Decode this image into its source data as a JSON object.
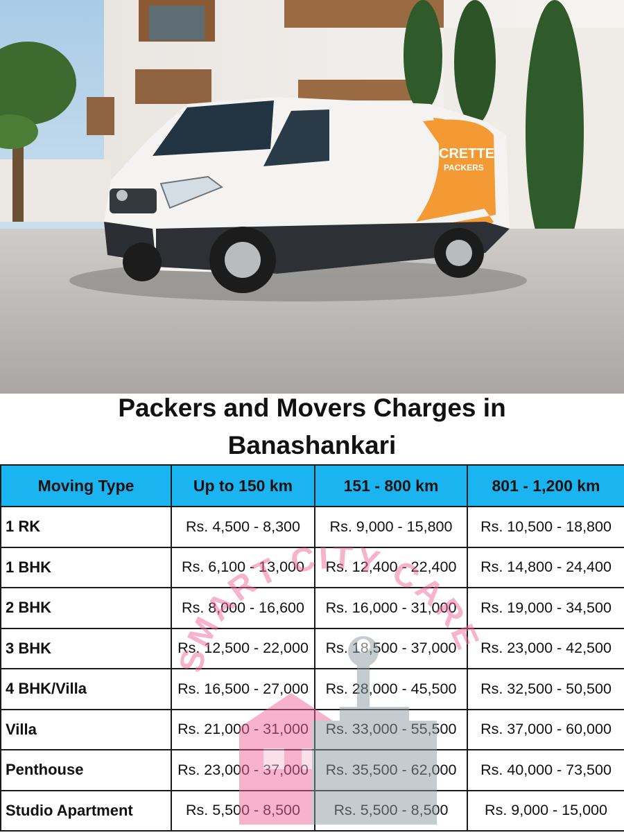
{
  "brand": {
    "van_logo_line1": "CRETTE",
    "van_logo_line2": "PACKERS"
  },
  "colors": {
    "header_blue": "#1ab5f0",
    "van_orange": "#f39a35",
    "watermark_pink": "#f06a9a"
  },
  "title": {
    "line1": "Packers and Movers Charges in",
    "line2": "Banashankari"
  },
  "table": {
    "headers": [
      "Moving Type",
      "Up to 150 km",
      "151 - 800 km",
      "801 - 1,200 km"
    ],
    "rows": [
      {
        "type": "1 RK",
        "c1": "Rs. 4,500 - 8,300",
        "c2": "Rs. 9,000 - 15,800",
        "c3": "Rs. 10,500 - 18,800"
      },
      {
        "type": "1 BHK",
        "c1": "Rs. 6,100 - 13,000",
        "c2": "Rs. 12,400 - 22,400",
        "c3": "Rs. 14,800 - 24,400"
      },
      {
        "type": "2 BHK",
        "c1": "Rs. 8,000 - 16,600",
        "c2": "Rs. 16,000 - 31,000",
        "c3": "Rs. 19,000 - 34,500"
      },
      {
        "type": "3 BHK",
        "c1": "Rs. 12,500 - 22,000",
        "c2": "Rs. 18,500 - 37,000",
        "c3": "Rs. 23,000 - 42,500"
      },
      {
        "type": "4 BHK/Villa",
        "c1": "Rs. 16,500 - 27,000",
        "c2": "Rs. 28,000 - 45,500",
        "c3": "Rs. 32,500 - 50,500"
      },
      {
        "type": "Villa",
        "c1": "Rs. 21,000 - 31,000",
        "c2": "Rs. 33,000 - 55,500",
        "c3": "Rs. 37,000 - 60,000"
      },
      {
        "type": "Penthouse",
        "c1": "Rs. 23,000 - 37,000",
        "c2": "Rs. 35,500 - 62,000",
        "c3": "Rs. 40,000 - 73,500"
      },
      {
        "type": "Studio Apartment",
        "c1": "Rs. 5,500 - 8,500",
        "c2": "Rs. 5,500 - 8,500",
        "c3": "Rs. 9,000 - 15,000"
      }
    ]
  },
  "watermark": {
    "text": "SMART CITY CARE"
  }
}
